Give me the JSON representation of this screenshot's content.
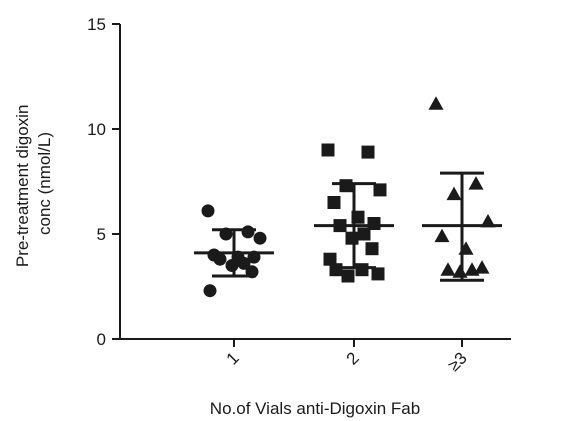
{
  "chart_data": {
    "type": "scatter",
    "xlabel": "No.of Vials anti-Digoxin Fab",
    "ylabel_lines": [
      "Pre-treatment digoxin",
      "conc (nmol/L)"
    ],
    "ylim": [
      0,
      15
    ],
    "yticks": [
      0,
      5,
      10,
      15
    ],
    "grid": false,
    "error_bars": "mean ± SD",
    "groups": [
      {
        "category": "1",
        "marker": "circle",
        "values": [
          6.1,
          5.1,
          5.0,
          4.8,
          4.0,
          3.9,
          3.9,
          3.8,
          3.6,
          3.5,
          3.2,
          2.3
        ],
        "mean": 4.1,
        "error_low": 3.0,
        "error_high": 5.2
      },
      {
        "category": "2",
        "marker": "square",
        "values": [
          9.0,
          8.9,
          7.3,
          7.1,
          6.5,
          5.8,
          5.5,
          5.4,
          5.0,
          4.8,
          4.3,
          3.8,
          3.3,
          3.3,
          3.1,
          3.0
        ],
        "mean": 5.4,
        "error_low": 3.4,
        "error_high": 7.4
      },
      {
        "category": "≥3",
        "marker": "triangle",
        "values": [
          11.2,
          7.4,
          6.9,
          5.6,
          4.9,
          4.3,
          3.4,
          3.3,
          3.3,
          3.2
        ],
        "mean": 5.4,
        "error_low": 2.8,
        "error_high": 7.9
      }
    ]
  }
}
